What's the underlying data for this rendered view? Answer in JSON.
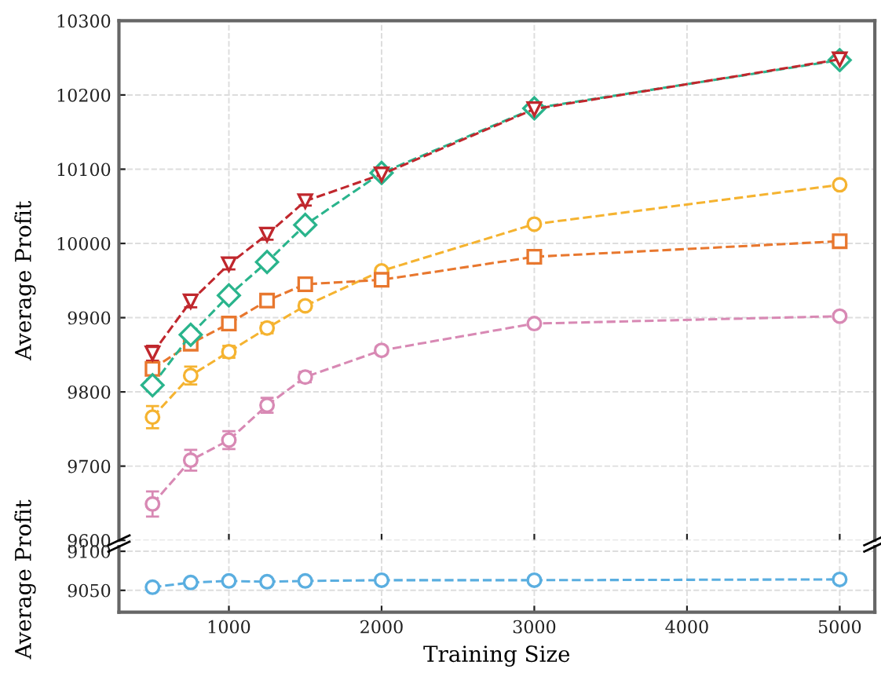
{
  "chart_data": [
    {
      "type": "line",
      "ylabel": "Average Profit",
      "x": [
        500,
        750,
        1000,
        1250,
        1500,
        2000,
        3000,
        5000
      ],
      "xlim": [
        280,
        5230
      ],
      "xticks": [
        {
          "value": 1000,
          "label": null
        },
        {
          "value": 2000,
          "label": null
        },
        {
          "value": 3000,
          "label": null
        },
        {
          "value": 4000,
          "label": null
        },
        {
          "value": 5000,
          "label": null
        }
      ],
      "ylim": [
        9600,
        10300
      ],
      "yticks": [
        9600,
        9700,
        9800,
        9900,
        10000,
        10100,
        10200,
        10300
      ],
      "tick_labels": "y",
      "grid": true,
      "line_style": "dashed",
      "series": [
        {
          "color": "#d889b4",
          "marker": "circle",
          "values": [
            9649,
            9708,
            9735,
            9782,
            9820,
            9856,
            9892,
            9902
          ],
          "errors": [
            17,
            14,
            12,
            10,
            7,
            5,
            3,
            3
          ]
        },
        {
          "color": "#f5b330",
          "marker": "circle",
          "values": [
            9766,
            9822,
            9854,
            9886,
            9916,
            9963,
            10026,
            10079
          ],
          "errors": [
            15,
            12,
            8,
            7,
            5,
            4,
            3,
            3
          ]
        },
        {
          "color": "#e8772e",
          "marker": "square",
          "values": [
            9831,
            9865,
            9892,
            9923,
            9945,
            9951,
            9982,
            10003
          ],
          "errors": [
            6,
            5,
            5,
            null,
            null,
            null,
            null,
            null
          ]
        },
        {
          "color": "#2ab48c",
          "marker": "diamond",
          "values": [
            9809,
            9877,
            9930,
            9975,
            10025,
            10095,
            10182,
            10247
          ],
          "errors": [
            8,
            6,
            6,
            6,
            null,
            null,
            null,
            null
          ]
        },
        {
          "color": "#c0272d",
          "marker": "triangle",
          "values": [
            9852,
            9922,
            9972,
            10012,
            10057,
            10093,
            10181,
            10248
          ],
          "errors": [
            10,
            8,
            7,
            7,
            6,
            null,
            null,
            null
          ]
        }
      ]
    },
    {
      "type": "line",
      "ylabel": "Average Profit",
      "xlabel": "Training Size",
      "x": [
        500,
        750,
        1000,
        1250,
        1500,
        2000,
        3000,
        5000
      ],
      "xlim": [
        280,
        5230
      ],
      "xticks": [
        1000,
        2000,
        3000,
        4000,
        5000
      ],
      "ylim": [
        9022,
        9106
      ],
      "yticks": [
        9050,
        9100
      ],
      "grid": true,
      "line_style": "dashed",
      "series": [
        {
          "color": "#5aaee0",
          "marker": "circle",
          "values": [
            9054,
            9060,
            9062,
            9061,
            9062,
            9063,
            9063,
            9064
          ]
        }
      ]
    }
  ]
}
